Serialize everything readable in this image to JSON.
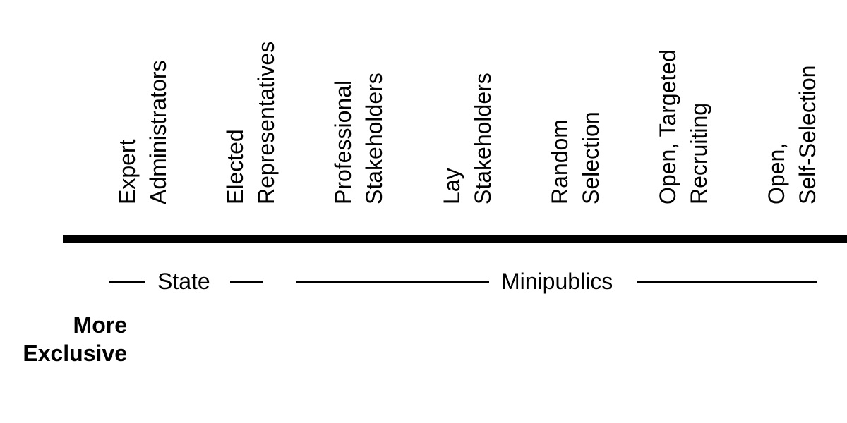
{
  "categories": [
    {
      "lines": [
        "Expert",
        "Administrators"
      ]
    },
    {
      "lines": [
        "Elected",
        "Representatives"
      ]
    },
    {
      "lines": [
        "Professional",
        "Stakeholders"
      ]
    },
    {
      "lines": [
        "Lay",
        "Stakeholders"
      ]
    },
    {
      "lines": [
        "Random",
        "Selection"
      ]
    },
    {
      "lines": [
        "Open, Targeted",
        "Recruiting"
      ]
    },
    {
      "lines": [
        "Open,",
        "Self-Selection"
      ]
    }
  ],
  "groups": {
    "state": "State",
    "minipublics": "Minipublics"
  },
  "end_label": {
    "line1": "More",
    "line2": "Exclusive"
  }
}
